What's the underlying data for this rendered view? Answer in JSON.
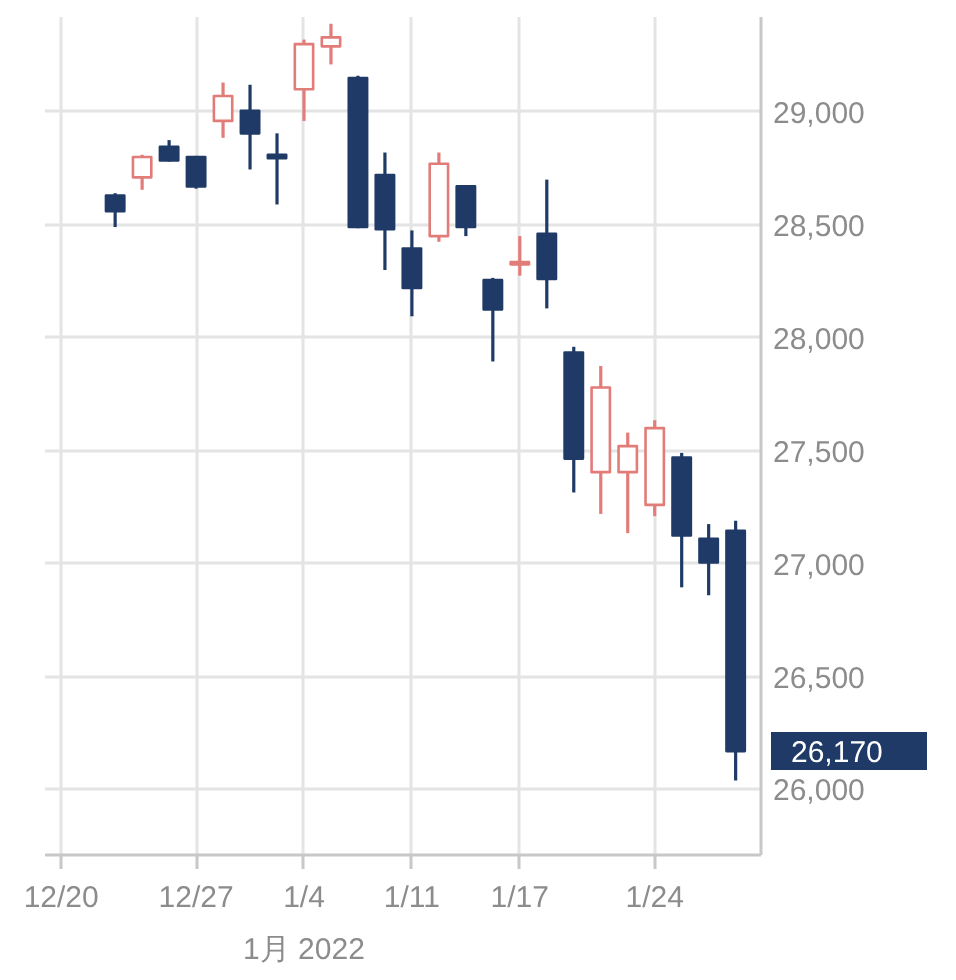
{
  "chart_data": {
    "type": "candlestick",
    "categories": [
      "12/20",
      null,
      null,
      null,
      null,
      "12/27",
      null,
      null,
      null,
      "1/4",
      null,
      null,
      null,
      "1/11",
      null,
      null,
      null,
      "1/17",
      null,
      null,
      null,
      null,
      "1/24",
      null,
      null,
      null
    ],
    "ohlc": [
      null,
      null,
      [
        28630,
        28640,
        28490,
        28560
      ],
      [
        28710,
        28810,
        28655,
        28800
      ],
      [
        28845,
        28875,
        28780,
        28785
      ],
      [
        28800,
        28805,
        28660,
        28670
      ],
      [
        28960,
        29130,
        28885,
        29070
      ],
      [
        29005,
        29120,
        28745,
        28905
      ],
      [
        28810,
        28905,
        28590,
        28795
      ],
      [
        29100,
        29320,
        28960,
        29300
      ],
      [
        29290,
        29390,
        29210,
        29330
      ],
      [
        29150,
        29160,
        28485,
        28490
      ],
      [
        28720,
        28820,
        28300,
        28480
      ],
      [
        28395,
        28475,
        28095,
        28220
      ],
      [
        28450,
        28820,
        28425,
        28770
      ],
      [
        28670,
        28675,
        28450,
        28490
      ],
      [
        28255,
        28265,
        27895,
        28125
      ],
      [
        28325,
        28450,
        28275,
        28335
      ],
      [
        28460,
        28700,
        28130,
        28260
      ],
      [
        27935,
        27960,
        27315,
        27465
      ],
      [
        27405,
        27875,
        27220,
        27780
      ],
      [
        27405,
        27580,
        27135,
        27520
      ],
      [
        27260,
        27635,
        27210,
        27600
      ],
      [
        27470,
        27490,
        26895,
        27125
      ],
      [
        27110,
        27175,
        26860,
        27005
      ],
      [
        27145,
        27190,
        26040,
        26170
      ]
    ],
    "colors": [
      null,
      null,
      "#1f3a66",
      "#e27c78",
      "#1f3a66",
      "#1f3a66",
      "#e27c78",
      "#1f3a66",
      "#1f3a66",
      "#e27c78",
      "#e27c78",
      "#1f3a66",
      "#1f3a66",
      "#1f3a66",
      "#e27c78",
      "#1f3a66",
      "#1f3a66",
      "#e27c78",
      "#1f3a66",
      "#1f3a66",
      "#e27c78",
      "#e27c78",
      "#e27c78",
      "#1f3a66",
      "#1f3a66",
      "#1f3a66"
    ],
    "ylim": [
      25710,
      29420
    ],
    "yticks": [
      {
        "value": 26000,
        "label": "26,000"
      },
      {
        "value": 26500,
        "label": "26,500"
      },
      {
        "value": 27000,
        "label": "27,000"
      },
      {
        "value": 27500,
        "label": "27,500"
      },
      {
        "value": 28000,
        "label": "28,000"
      },
      {
        "value": 28500,
        "label": "28,500"
      },
      {
        "value": 29000,
        "label": "29,000"
      }
    ],
    "grid": true,
    "annotations": [
      "26,170",
      "1月 2022"
    ]
  }
}
